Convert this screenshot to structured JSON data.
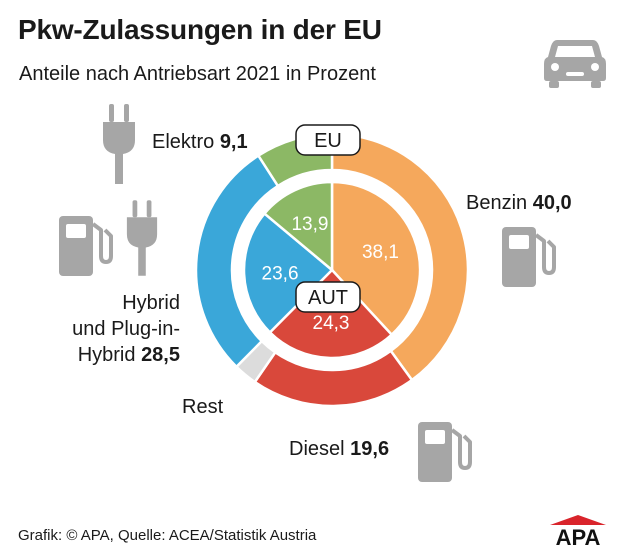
{
  "title": "Pkw-Zulassungen in der EU",
  "subtitle": "Anteile nach Antriebsart 2021 in Prozent",
  "footer": "Grafik: © APA, Quelle: ACEA/Statistik Austria",
  "logo_text": "APA",
  "icons": [
    "car-icon",
    "plug-icon",
    "fuel-pump-icon"
  ],
  "colors": {
    "benzin": "#f5a85c",
    "diesel": "#d9483b",
    "hybrid": "#3aa7d9",
    "elektro": "#8cb865",
    "rest": "#dcdcdc",
    "icon": "#a6a6a6"
  },
  "chart_data": [
    {
      "type": "pie",
      "ring": "outer",
      "center_label": "EU",
      "slices": [
        {
          "name": "Benzin",
          "value": 40.0,
          "value_label": "40,0"
        },
        {
          "name": "Diesel",
          "value": 19.6,
          "value_label": "19,6"
        },
        {
          "name": "Rest",
          "value": 2.8
        },
        {
          "name": "Hybrid und Plug-in-Hybrid",
          "value": 28.5,
          "value_label": "28,5"
        },
        {
          "name": "Elektro",
          "value": 9.1,
          "value_label": "9,1"
        }
      ]
    },
    {
      "type": "pie",
      "ring": "inner",
      "center_label": "AUT",
      "slices": [
        {
          "name": "Benzin",
          "value": 38.1,
          "value_label": "38,1"
        },
        {
          "name": "Diesel",
          "value": 24.3,
          "value_label": "24,3"
        },
        {
          "name": "Hybrid und Plug-in-Hybrid",
          "value": 23.6,
          "value_label": "23,6"
        },
        {
          "name": "Elektro",
          "value": 13.9,
          "value_label": "13,9"
        }
      ]
    }
  ],
  "labels": {
    "elektro": {
      "name": "Elektro",
      "value": "9,1"
    },
    "benzin": {
      "name": "Benzin",
      "value": "40,0"
    },
    "hybrid": {
      "line1": "Hybrid",
      "line2": "und Plug-in-",
      "line3": "Hybrid",
      "value": "28,5"
    },
    "rest": {
      "name": "Rest"
    },
    "diesel": {
      "name": "Diesel",
      "value": "19,6"
    }
  }
}
